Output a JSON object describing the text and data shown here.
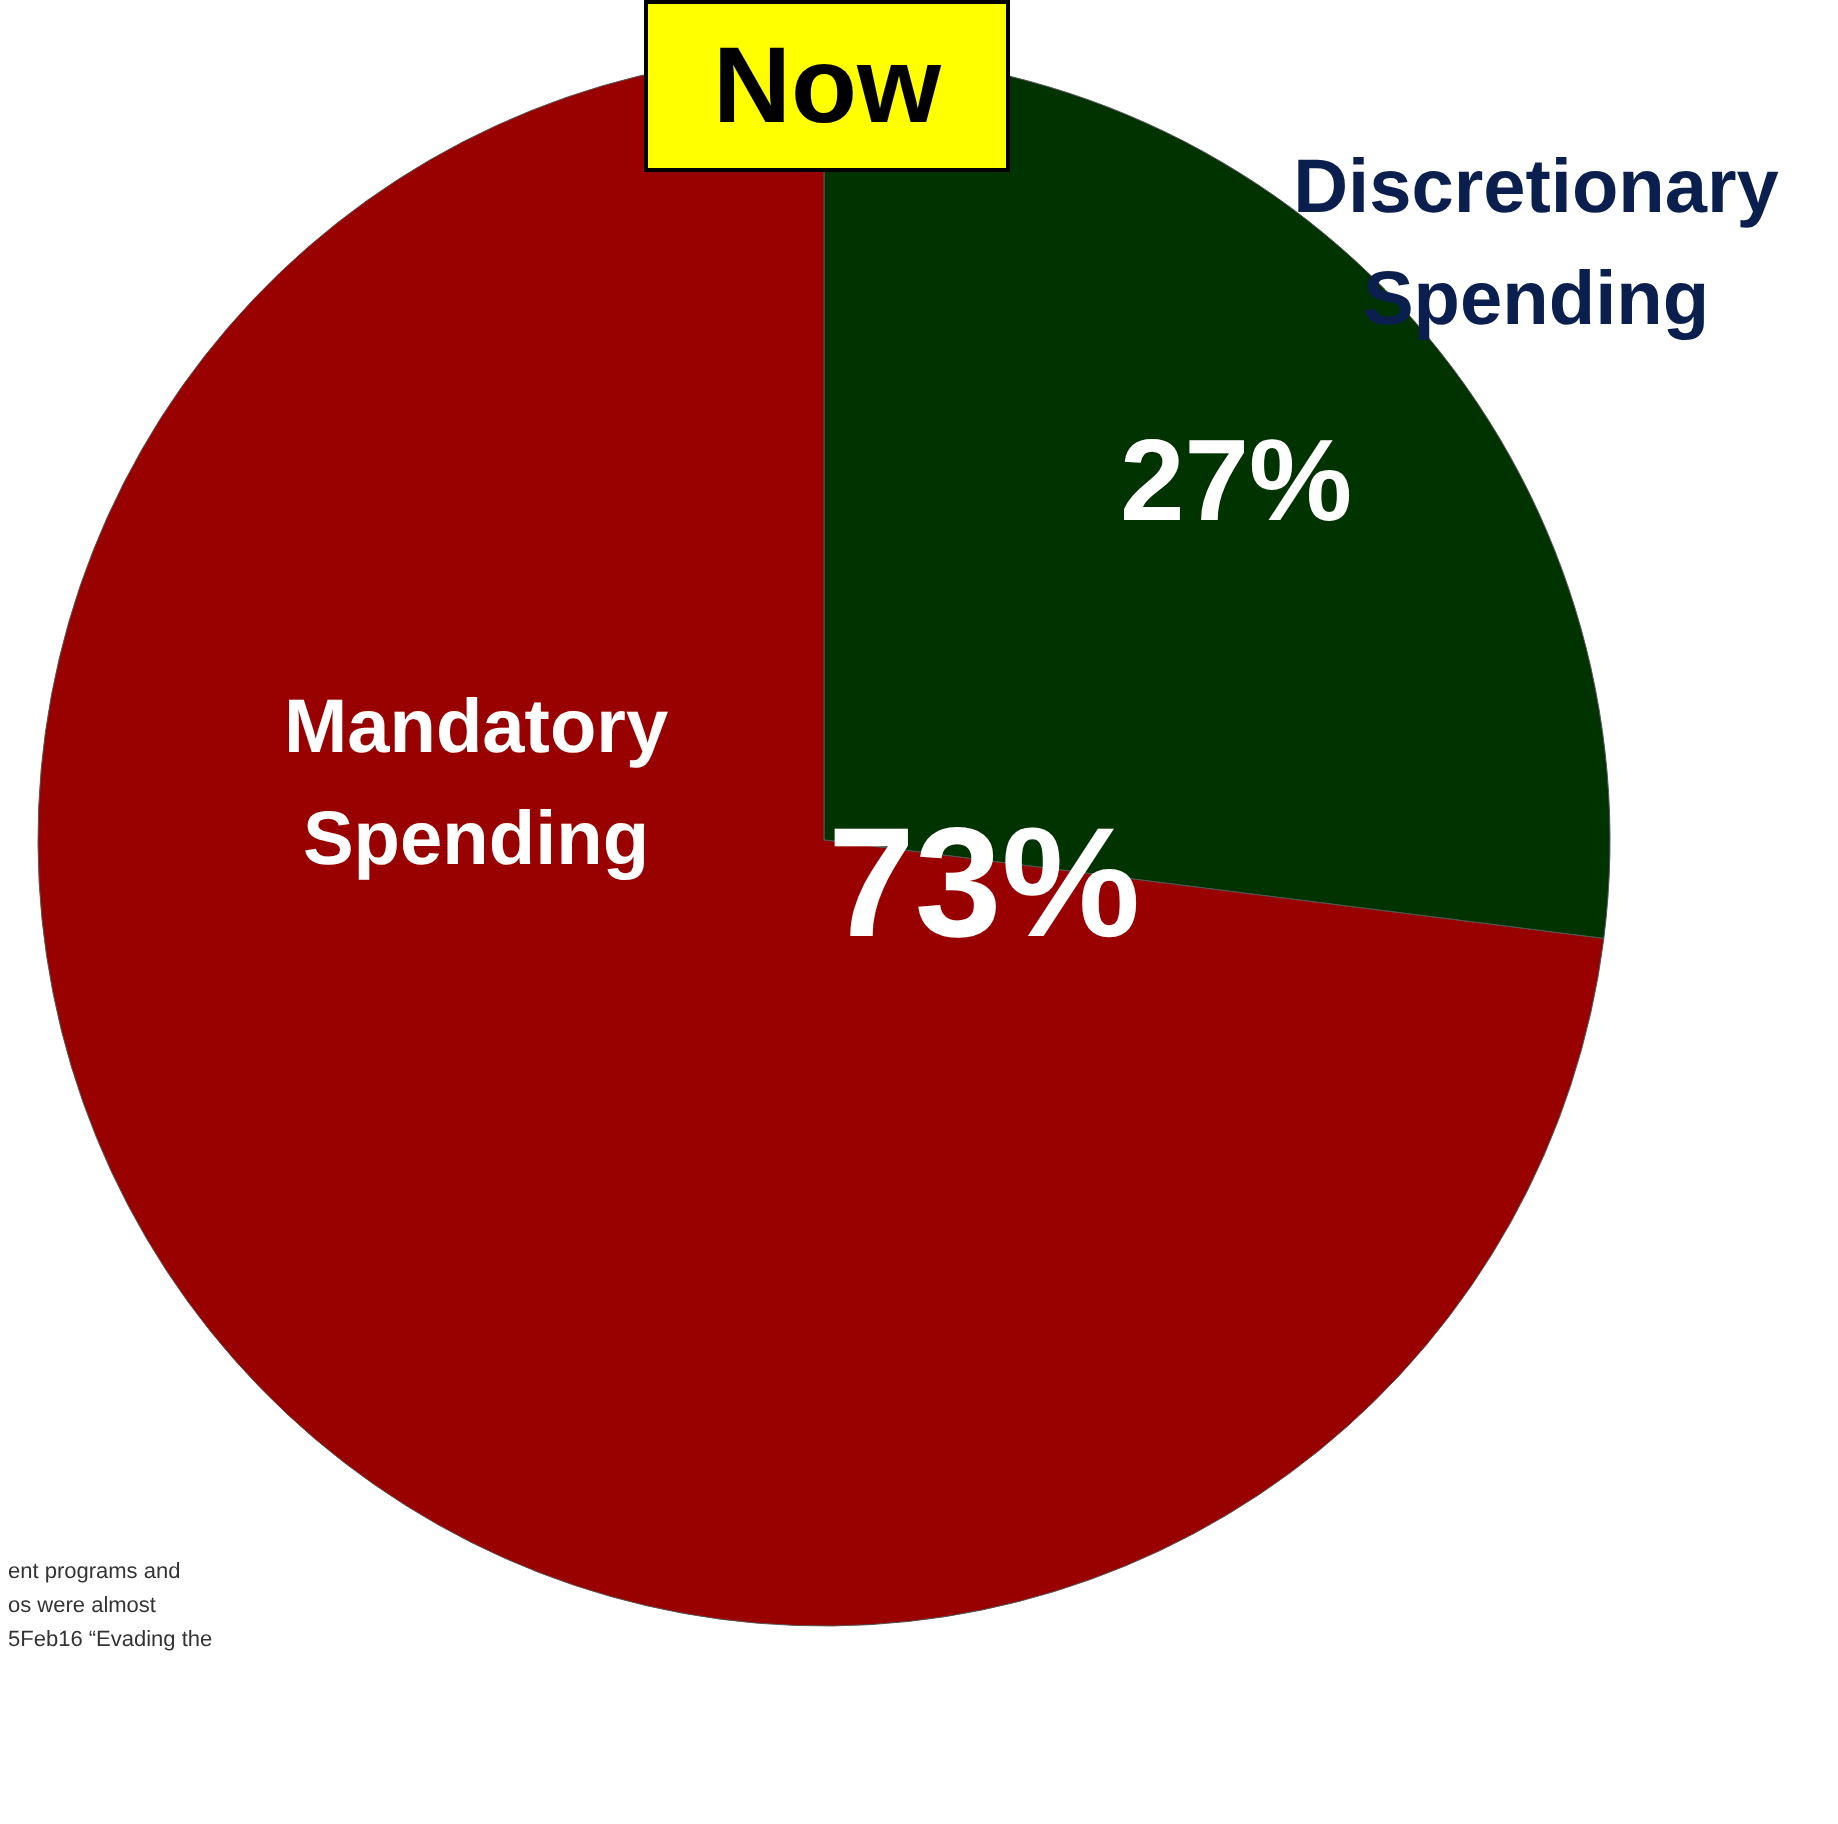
{
  "chart_data": {
    "type": "pie",
    "title": "Now",
    "categories": [
      "Discretionary Spending",
      "Mandatory Spending"
    ],
    "values": [
      27,
      73
    ],
    "colors": [
      "#003300",
      "#990000"
    ],
    "value_labels": [
      "27%",
      "73%"
    ],
    "annotations": [
      "ent programs and",
      "os were almost",
      "5Feb16 “Evading the"
    ]
  }
}
